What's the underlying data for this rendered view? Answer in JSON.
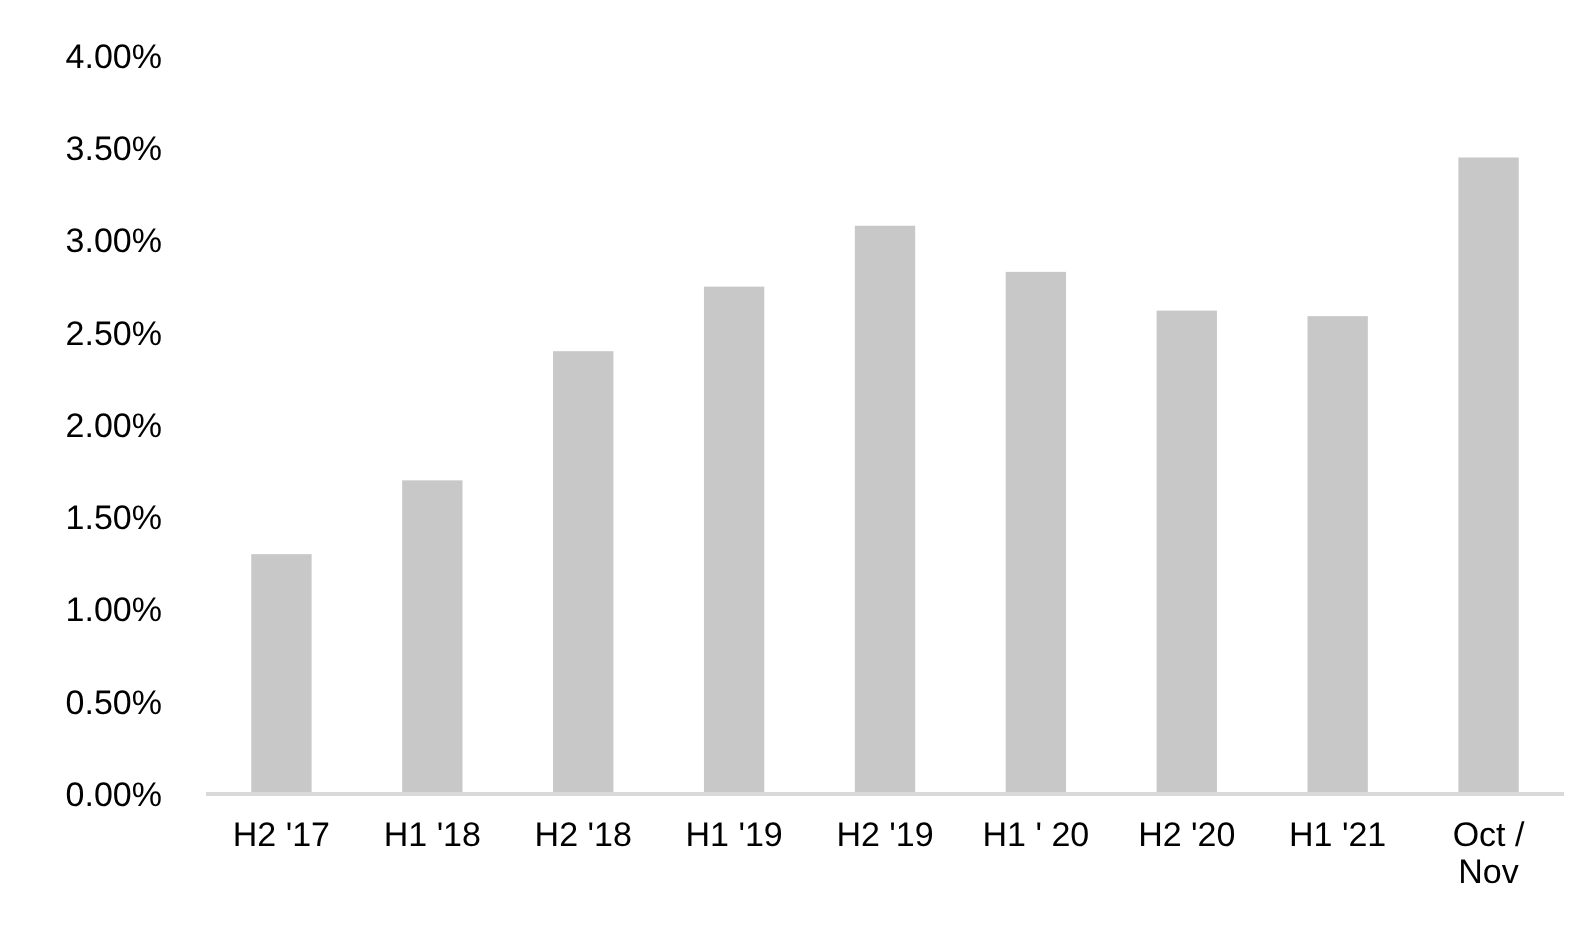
{
  "chart_data": {
    "type": "bar",
    "categories": [
      "H2 '17",
      "H1 '18",
      "H2 '18",
      "H1 '19",
      "H2 '19",
      "H1 ' 20",
      "H2 '20",
      "H1 '21",
      "Oct / Nov"
    ],
    "values": [
      1.3,
      1.7,
      2.4,
      2.75,
      3.08,
      2.83,
      2.62,
      2.59,
      3.45
    ],
    "color": "#c8c8c8",
    "ylim": [
      0,
      4
    ],
    "yticks": [
      {
        "value": 0,
        "label": "0.00%"
      },
      {
        "value": 0.5,
        "label": "0.50%"
      },
      {
        "value": 1,
        "label": "1.00%"
      },
      {
        "value": 1.5,
        "label": "1.50%"
      },
      {
        "value": 2,
        "label": "2.00%"
      },
      {
        "value": 2.5,
        "label": "2.50%"
      },
      {
        "value": 3,
        "label": "3.00%"
      },
      {
        "value": 3.5,
        "label": "3.50%"
      },
      {
        "value": 4,
        "label": "4.00%"
      }
    ],
    "grid": false
  }
}
